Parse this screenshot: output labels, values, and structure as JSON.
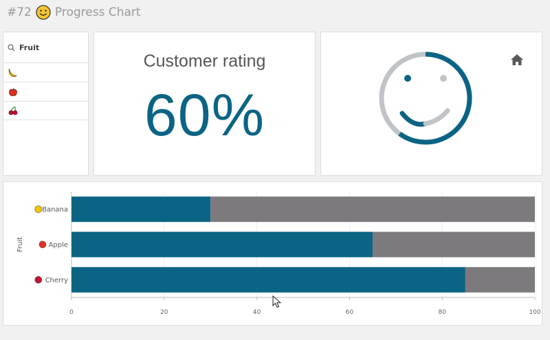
{
  "header": {
    "number": "#72",
    "title": "Progress Chart",
    "icon": "smiley-face-emoji"
  },
  "filter": {
    "search_icon": "search-icon",
    "label": "Fruit",
    "items": [
      {
        "name": "Banana",
        "icon": "banana-icon"
      },
      {
        "name": "Apple",
        "icon": "apple-icon"
      },
      {
        "name": "Cherry",
        "icon": "cherry-icon"
      }
    ]
  },
  "kpi": {
    "title": "Customer rating",
    "value": "60%"
  },
  "gauge": {
    "value": 0.6,
    "icon": "smiley-gauge",
    "home_icon": "home-icon"
  },
  "colors": {
    "primary": "#0b6484",
    "remainder": "#7c7a7c",
    "gauge_track": "#c0c3c7",
    "header_text": "#9a9a9a"
  },
  "chart_data": {
    "type": "bar",
    "orientation": "horizontal",
    "stacked": true,
    "categories": [
      "Banana",
      "Apple",
      "Cherry"
    ],
    "series": [
      {
        "values": [
          30,
          65,
          85
        ]
      },
      {
        "values": [
          70,
          35,
          15
        ]
      }
    ],
    "xlim": [
      0,
      100
    ],
    "xticks": [
      "0",
      "20",
      "40",
      "60",
      "80",
      "100"
    ],
    "ylabel": "Fruit",
    "grid": true
  }
}
